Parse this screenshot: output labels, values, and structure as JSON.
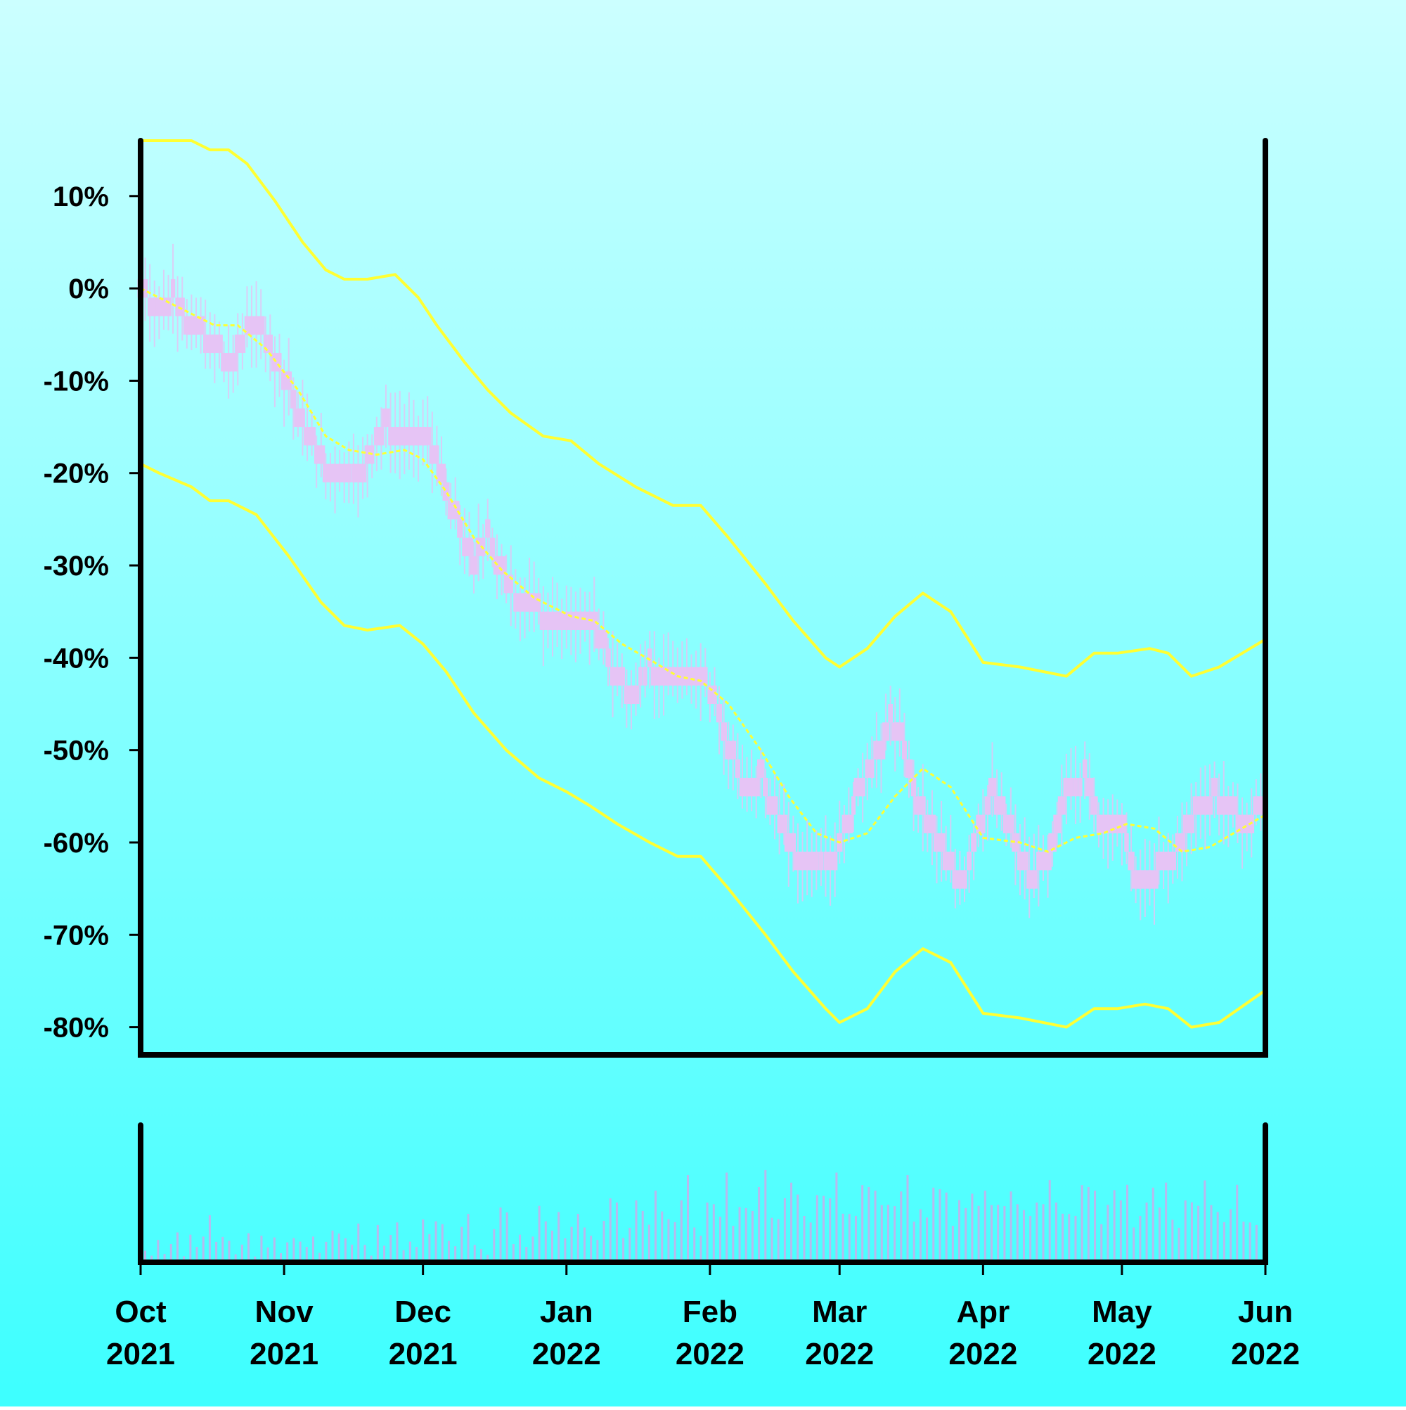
{
  "chart_data": {
    "type": "line",
    "title": "",
    "xlabel": "",
    "ylabel": "",
    "x_tick_labels": [
      {
        "month": "Oct",
        "year": "2021"
      },
      {
        "month": "Nov",
        "year": "2021"
      },
      {
        "month": "Dec",
        "year": "2021"
      },
      {
        "month": "Jan",
        "year": "2022"
      },
      {
        "month": "Feb",
        "year": "2022"
      },
      {
        "month": "Mar",
        "year": "2022"
      },
      {
        "month": "Apr",
        "year": "2022"
      },
      {
        "month": "May",
        "year": "2022"
      },
      {
        "month": "Jun",
        "year": "2022"
      }
    ],
    "x_tick_dates": [
      "2021-10-01",
      "2021-11-01",
      "2021-12-01",
      "2022-01-01",
      "2022-02-01",
      "2022-03-01",
      "2022-04-01",
      "2022-05-01",
      "2022-06-01"
    ],
    "xlim": [
      "2021-10-01",
      "2022-06-01"
    ],
    "y_tick_labels": [
      "10%",
      "0%",
      "-10%",
      "-20%",
      "-30%",
      "-40%",
      "-50%",
      "-60%",
      "-70%",
      "-80%"
    ],
    "y_tick_values": [
      10,
      0,
      -10,
      -20,
      -30,
      -40,
      -50,
      -60,
      -70,
      -80
    ],
    "ylim": [
      -83,
      16
    ],
    "grid": false,
    "price_series": {
      "style": "candlestick-like bars",
      "color": "#e6c4f5",
      "points": [
        [
          "2021-10-01",
          0
        ],
        [
          "2021-10-04",
          -2
        ],
        [
          "2021-10-08",
          -1
        ],
        [
          "2021-10-12",
          -4
        ],
        [
          "2021-10-16",
          -6
        ],
        [
          "2021-10-20",
          -8
        ],
        [
          "2021-10-24",
          -5
        ],
        [
          "2021-10-27",
          -4
        ],
        [
          "2021-10-30",
          -8
        ],
        [
          "2021-11-03",
          -12
        ],
        [
          "2021-11-07",
          -17
        ],
        [
          "2021-11-11",
          -21
        ],
        [
          "2021-11-15",
          -20
        ],
        [
          "2021-11-19",
          -19
        ],
        [
          "2021-11-23",
          -15
        ],
        [
          "2021-11-27",
          -17
        ],
        [
          "2021-12-01",
          -16
        ],
        [
          "2021-12-05",
          -20
        ],
        [
          "2021-12-08",
          -25
        ],
        [
          "2021-12-12",
          -30
        ],
        [
          "2021-12-15",
          -27
        ],
        [
          "2021-12-18",
          -31
        ],
        [
          "2021-12-22",
          -35
        ],
        [
          "2021-12-26",
          -35
        ],
        [
          "2021-12-30",
          -36
        ],
        [
          "2022-01-03",
          -36
        ],
        [
          "2022-01-07",
          -36
        ],
        [
          "2022-01-11",
          -42
        ],
        [
          "2022-01-15",
          -44
        ],
        [
          "2022-01-19",
          -41
        ],
        [
          "2022-01-23",
          -43
        ],
        [
          "2022-01-27",
          -43
        ],
        [
          "2022-01-31",
          -42
        ],
        [
          "2022-02-04",
          -48
        ],
        [
          "2022-02-08",
          -54
        ],
        [
          "2022-02-12",
          -53
        ],
        [
          "2022-02-16",
          -58
        ],
        [
          "2022-02-20",
          -62
        ],
        [
          "2022-02-24",
          -63
        ],
        [
          "2022-02-28",
          -62
        ],
        [
          "2022-03-04",
          -56
        ],
        [
          "2022-03-08",
          -52
        ],
        [
          "2022-03-12",
          -47
        ],
        [
          "2022-03-15",
          -50
        ],
        [
          "2022-03-19",
          -57
        ],
        [
          "2022-03-23",
          -61
        ],
        [
          "2022-03-27",
          -65
        ],
        [
          "2022-03-31",
          -59
        ],
        [
          "2022-04-03",
          -54
        ],
        [
          "2022-04-07",
          -59
        ],
        [
          "2022-04-11",
          -64
        ],
        [
          "2022-04-15",
          -62
        ],
        [
          "2022-04-19",
          -55
        ],
        [
          "2022-04-23",
          -53
        ],
        [
          "2022-04-27",
          -59
        ],
        [
          "2022-05-01",
          -59
        ],
        [
          "2022-05-05",
          -65
        ],
        [
          "2022-05-09",
          -63
        ],
        [
          "2022-05-13",
          -61
        ],
        [
          "2022-05-17",
          -56
        ],
        [
          "2022-05-21",
          -55
        ],
        [
          "2022-05-25",
          -57
        ],
        [
          "2022-05-29",
          -58
        ],
        [
          "2022-06-01",
          -55
        ]
      ]
    },
    "series": [
      {
        "role": "upper band",
        "color": "#ffff33",
        "style": "solid",
        "points": [
          [
            "2021-10-01",
            16
          ],
          [
            "2021-10-12",
            16
          ],
          [
            "2021-10-16",
            15
          ],
          [
            "2021-10-20",
            15
          ],
          [
            "2021-10-24",
            13.5
          ],
          [
            "2021-10-30",
            9.5
          ],
          [
            "2021-11-05",
            5
          ],
          [
            "2021-11-10",
            2
          ],
          [
            "2021-11-14",
            1
          ],
          [
            "2021-11-19",
            1
          ],
          [
            "2021-11-25",
            1.5
          ],
          [
            "2021-11-30",
            -1
          ],
          [
            "2021-12-04",
            -4
          ],
          [
            "2021-12-10",
            -8
          ],
          [
            "2021-12-15",
            -11
          ],
          [
            "2021-12-20",
            -13.5
          ],
          [
            "2021-12-27",
            -16
          ],
          [
            "2022-01-02",
            -16.5
          ],
          [
            "2022-01-08",
            -19
          ],
          [
            "2022-01-16",
            -21.5
          ],
          [
            "2022-01-24",
            -23.5
          ],
          [
            "2022-01-30",
            -23.5
          ],
          [
            "2022-02-05",
            -27
          ],
          [
            "2022-02-13",
            -32
          ],
          [
            "2022-02-19",
            -36
          ],
          [
            "2022-02-26",
            -40
          ],
          [
            "2022-03-01",
            -41
          ],
          [
            "2022-03-07",
            -39
          ],
          [
            "2022-03-13",
            -35.5
          ],
          [
            "2022-03-19",
            -33
          ],
          [
            "2022-03-25",
            -35
          ],
          [
            "2022-04-01",
            -40.5
          ],
          [
            "2022-04-09",
            -41
          ],
          [
            "2022-04-19",
            -42
          ],
          [
            "2022-04-25",
            -39.5
          ],
          [
            "2022-04-30",
            -39.5
          ],
          [
            "2022-05-07",
            -39
          ],
          [
            "2022-05-11",
            -39.5
          ],
          [
            "2022-05-16",
            -42
          ],
          [
            "2022-05-22",
            -41
          ],
          [
            "2022-06-01",
            -38
          ]
        ]
      },
      {
        "role": "moving average",
        "color": "#ffff33",
        "style": "dashed",
        "points": [
          [
            "2021-10-01",
            0
          ],
          [
            "2021-10-05",
            -1
          ],
          [
            "2021-10-11",
            -2.5
          ],
          [
            "2021-10-17",
            -4
          ],
          [
            "2021-10-22",
            -4
          ],
          [
            "2021-10-28",
            -6.5
          ],
          [
            "2021-11-04",
            -11
          ],
          [
            "2021-11-10",
            -16
          ],
          [
            "2021-11-15",
            -17.5
          ],
          [
            "2021-11-21",
            -18
          ],
          [
            "2021-11-27",
            -17.5
          ],
          [
            "2021-12-01",
            -18.5
          ],
          [
            "2021-12-06",
            -22
          ],
          [
            "2021-12-12",
            -27
          ],
          [
            "2021-12-18",
            -30.5
          ],
          [
            "2021-12-25",
            -33.5
          ],
          [
            "2022-01-02",
            -35.5
          ],
          [
            "2022-01-07",
            -36
          ],
          [
            "2022-01-13",
            -38.5
          ],
          [
            "2022-01-20",
            -40.5
          ],
          [
            "2022-01-25",
            -42
          ],
          [
            "2022-01-30",
            -42.5
          ],
          [
            "2022-02-05",
            -45
          ],
          [
            "2022-02-12",
            -50
          ],
          [
            "2022-02-18",
            -55
          ],
          [
            "2022-02-24",
            -59
          ],
          [
            "2022-03-01",
            -60
          ],
          [
            "2022-03-07",
            -59
          ],
          [
            "2022-03-13",
            -55
          ],
          [
            "2022-03-19",
            -52
          ],
          [
            "2022-03-25",
            -54
          ],
          [
            "2022-04-01",
            -59.5
          ],
          [
            "2022-04-09",
            -60
          ],
          [
            "2022-04-15",
            -61
          ],
          [
            "2022-04-21",
            -59.5
          ],
          [
            "2022-04-27",
            -59
          ],
          [
            "2022-05-02",
            -58
          ],
          [
            "2022-05-08",
            -58.5
          ],
          [
            "2022-05-14",
            -61
          ],
          [
            "2022-05-20",
            -60.5
          ],
          [
            "2022-06-01",
            -57
          ]
        ]
      },
      {
        "role": "lower band",
        "color": "#ffff33",
        "style": "solid",
        "points": [
          [
            "2021-10-01",
            -19
          ],
          [
            "2021-10-05",
            -20
          ],
          [
            "2021-10-12",
            -21.5
          ],
          [
            "2021-10-16",
            -23
          ],
          [
            "2021-10-20",
            -23
          ],
          [
            "2021-10-26",
            -24.5
          ],
          [
            "2021-11-02",
            -29
          ],
          [
            "2021-11-09",
            -34
          ],
          [
            "2021-11-14",
            -36.5
          ],
          [
            "2021-11-19",
            -37
          ],
          [
            "2021-11-26",
            -36.5
          ],
          [
            "2021-12-01",
            -38.5
          ],
          [
            "2021-12-06",
            -41.5
          ],
          [
            "2021-12-12",
            -46
          ],
          [
            "2021-12-19",
            -50
          ],
          [
            "2021-12-26",
            -53
          ],
          [
            "2022-01-01",
            -54.5
          ],
          [
            "2022-01-06",
            -56
          ],
          [
            "2022-01-12",
            -58
          ],
          [
            "2022-01-19",
            -60
          ],
          [
            "2022-01-25",
            -61.5
          ],
          [
            "2022-01-30",
            -61.5
          ],
          [
            "2022-02-05",
            -65
          ],
          [
            "2022-02-13",
            -70
          ],
          [
            "2022-02-19",
            -74
          ],
          [
            "2022-02-26",
            -78
          ],
          [
            "2022-03-01",
            -79.5
          ],
          [
            "2022-03-07",
            -78
          ],
          [
            "2022-03-13",
            -74
          ],
          [
            "2022-03-19",
            -71.5
          ],
          [
            "2022-03-25",
            -73
          ],
          [
            "2022-04-01",
            -78.5
          ],
          [
            "2022-04-09",
            -79
          ],
          [
            "2022-04-19",
            -80
          ],
          [
            "2022-04-25",
            -78
          ],
          [
            "2022-04-30",
            -78
          ],
          [
            "2022-05-06",
            -77.5
          ],
          [
            "2022-05-11",
            -78
          ],
          [
            "2022-05-16",
            -80
          ],
          [
            "2022-05-22",
            -79.5
          ],
          [
            "2022-06-01",
            -76
          ]
        ]
      }
    ],
    "volume": {
      "color": "#b9b9ee",
      "axis_labels": false,
      "values": [
        2,
        1,
        3,
        1,
        2,
        3,
        1,
        4,
        2,
        3,
        5,
        2,
        4,
        3,
        1,
        2,
        3,
        1,
        4,
        2,
        3,
        1,
        2,
        4,
        3,
        2,
        3,
        1,
        2,
        5,
        4,
        3,
        2,
        4,
        3,
        1,
        5,
        2,
        3,
        4,
        2,
        3,
        2,
        5,
        3,
        4,
        6,
        3,
        2,
        4,
        5,
        3,
        2,
        1,
        4,
        6,
        5,
        3,
        4,
        2,
        3,
        6,
        4,
        5,
        7,
        3,
        4,
        5,
        6,
        4,
        3,
        5,
        7,
        6,
        4,
        5,
        8,
        6,
        4,
        7,
        8,
        6,
        5,
        7,
        9,
        6,
        4,
        8,
        7,
        5,
        9,
        6,
        8,
        7,
        6,
        8,
        9,
        7,
        6,
        8,
        9,
        7,
        8,
        6,
        9,
        8,
        7,
        9,
        8,
        7,
        6,
        9,
        8,
        7,
        9,
        8,
        7,
        8,
        9,
        7,
        8,
        6,
        9,
        8,
        7,
        6,
        9,
        7,
        8,
        6,
        7,
        9,
        8,
        7,
        8,
        6,
        9,
        7,
        8,
        7,
        9,
        6,
        8,
        7,
        6,
        9,
        8,
        7,
        6,
        8,
        9,
        7,
        8,
        6,
        7,
        8,
        9,
        6,
        8,
        7,
        5,
        8,
        7,
        6,
        8,
        9,
        7,
        5,
        6,
        8,
        7,
        6,
        5
      ]
    }
  }
}
